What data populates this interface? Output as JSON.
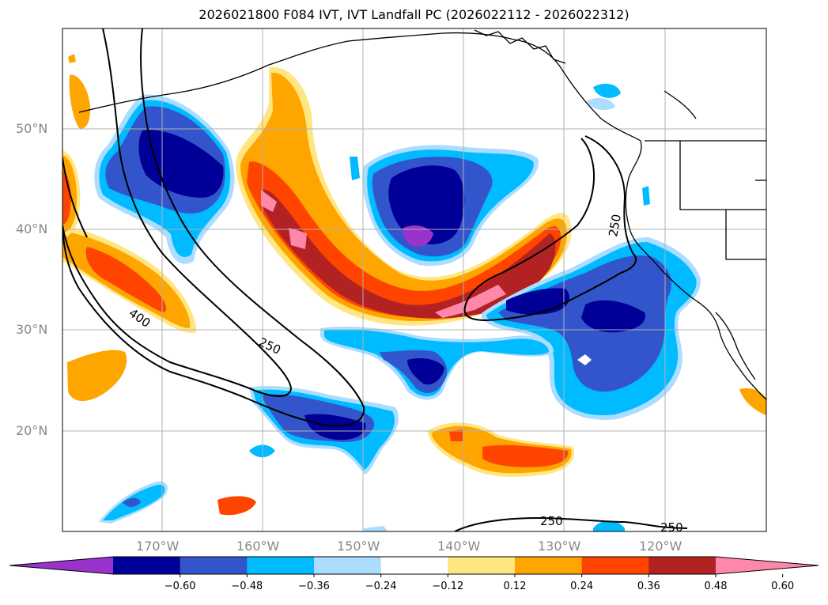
{
  "title": "2026021800 F084 IVT, IVT Landfall PC (2026022112 - 2026022312)",
  "lat_labels": [
    "50°N",
    "40°N",
    "30°N",
    "20°N"
  ],
  "lon_labels": [
    "170°W",
    "160°W",
    "150°W",
    "140°W",
    "130°W",
    "120°W"
  ],
  "contour_labels": [
    "400",
    "250",
    "250",
    "250",
    "250"
  ],
  "colorbar": {
    "ticks": [
      "−0.60",
      "−0.48",
      "−0.36",
      "−0.24",
      "−0.12",
      "0.12",
      "0.24",
      "0.36",
      "0.48",
      "0.60"
    ],
    "colors": [
      "#9933cc",
      "#000099",
      "#3355cc",
      "#00bbff",
      "#aaddff",
      "#ffffff",
      "#ffe680",
      "#ffa500",
      "#ff4400",
      "#b22222",
      "#ff88aa"
    ]
  }
}
